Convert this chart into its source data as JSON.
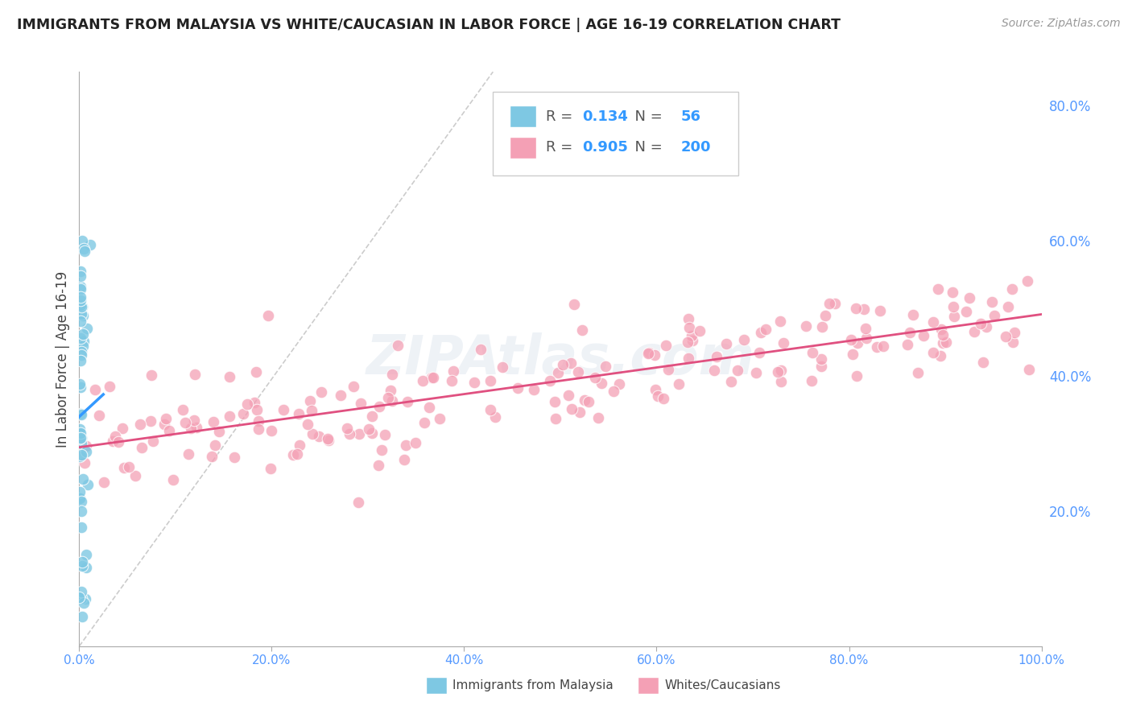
{
  "title": "IMMIGRANTS FROM MALAYSIA VS WHITE/CAUCASIAN IN LABOR FORCE | AGE 16-19 CORRELATION CHART",
  "source": "Source: ZipAtlas.com",
  "ylabel": "In Labor Force | Age 16-19",
  "xlim": [
    0.0,
    1.0
  ],
  "ylim": [
    0.0,
    0.85
  ],
  "xticks": [
    0.0,
    0.2,
    0.4,
    0.6,
    0.8,
    1.0
  ],
  "xtick_labels": [
    "0.0%",
    "20.0%",
    "40.0%",
    "60.0%",
    "80.0%",
    "100.0%"
  ],
  "ytick_labels_right": [
    "20.0%",
    "40.0%",
    "60.0%",
    "80.0%"
  ],
  "ytick_positions_right": [
    0.2,
    0.4,
    0.6,
    0.8
  ],
  "blue_R": "0.134",
  "blue_N": "56",
  "pink_R": "0.905",
  "pink_N": "200",
  "blue_color": "#7ec8e3",
  "pink_color": "#f4a0b5",
  "blue_line_color": "#a0c0d0",
  "pink_line_color": "#e05080",
  "legend_label_blue": "Immigrants from Malaysia",
  "legend_label_pink": "Whites/Caucasians",
  "watermark": "ZIPAtlas.com",
  "background_color": "#ffffff",
  "grid_color": "#dddddd",
  "title_color": "#222222",
  "axis_label_color": "#444444",
  "tick_color": "#5599ff",
  "blue_accent": "#3399ff",
  "pink_accent": "#e05080"
}
